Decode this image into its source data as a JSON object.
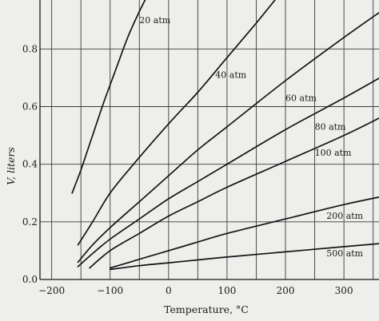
{
  "chart_data": {
    "type": "line",
    "xlabel": "Temperature, °C",
    "ylabel": "V, liters",
    "xlim": [
      -220,
      360
    ],
    "ylim": [
      0,
      0.97
    ],
    "grid": true,
    "x_ticks": [
      -200,
      -100,
      0,
      100,
      200,
      300
    ],
    "x_tick_labels": [
      "−200",
      "−100",
      "0",
      "100",
      "200",
      "300"
    ],
    "y_ticks": [
      0.0,
      0.2,
      0.4,
      0.6,
      0.8
    ],
    "y_tick_labels": [
      "0.0",
      "0.2",
      "0.4",
      "0.6",
      "0.8"
    ],
    "series": [
      {
        "name": "20 atm",
        "x": [
          -165,
          -150,
          -130,
          -110,
          -90,
          -70,
          -50,
          -35
        ],
        "y": [
          0.3,
          0.38,
          0.5,
          0.62,
          0.73,
          0.84,
          0.93,
          0.99
        ]
      },
      {
        "name": "40 atm",
        "x": [
          -155,
          -130,
          -100,
          -60,
          0,
          50,
          100,
          150,
          190
        ],
        "y": [
          0.12,
          0.2,
          0.3,
          0.4,
          0.54,
          0.65,
          0.77,
          0.89,
          0.99
        ]
      },
      {
        "name": "60 atm",
        "x": [
          -155,
          -130,
          -100,
          -50,
          0,
          50,
          100,
          200,
          300,
          370
        ],
        "y": [
          0.06,
          0.12,
          0.18,
          0.27,
          0.36,
          0.45,
          0.53,
          0.69,
          0.84,
          0.94
        ]
      },
      {
        "name": "80 atm",
        "x": [
          -155,
          -130,
          -100,
          -50,
          0,
          50,
          100,
          200,
          300,
          370
        ],
        "y": [
          0.045,
          0.09,
          0.14,
          0.21,
          0.28,
          0.34,
          0.4,
          0.52,
          0.63,
          0.71
        ]
      },
      {
        "name": "100 atm",
        "x": [
          -135,
          -100,
          -50,
          0,
          50,
          100,
          200,
          300,
          370
        ],
        "y": [
          0.04,
          0.1,
          0.16,
          0.22,
          0.27,
          0.32,
          0.41,
          0.5,
          0.57
        ]
      },
      {
        "name": "200 atm",
        "x": [
          -100,
          -50,
          0,
          50,
          100,
          200,
          300,
          370
        ],
        "y": [
          0.04,
          0.07,
          0.1,
          0.13,
          0.16,
          0.21,
          0.26,
          0.29
        ]
      },
      {
        "name": "500 atm",
        "x": [
          -100,
          -50,
          0,
          50,
          100,
          200,
          300,
          370
        ],
        "y": [
          0.035,
          0.048,
          0.058,
          0.068,
          0.078,
          0.096,
          0.114,
          0.126
        ]
      }
    ]
  }
}
